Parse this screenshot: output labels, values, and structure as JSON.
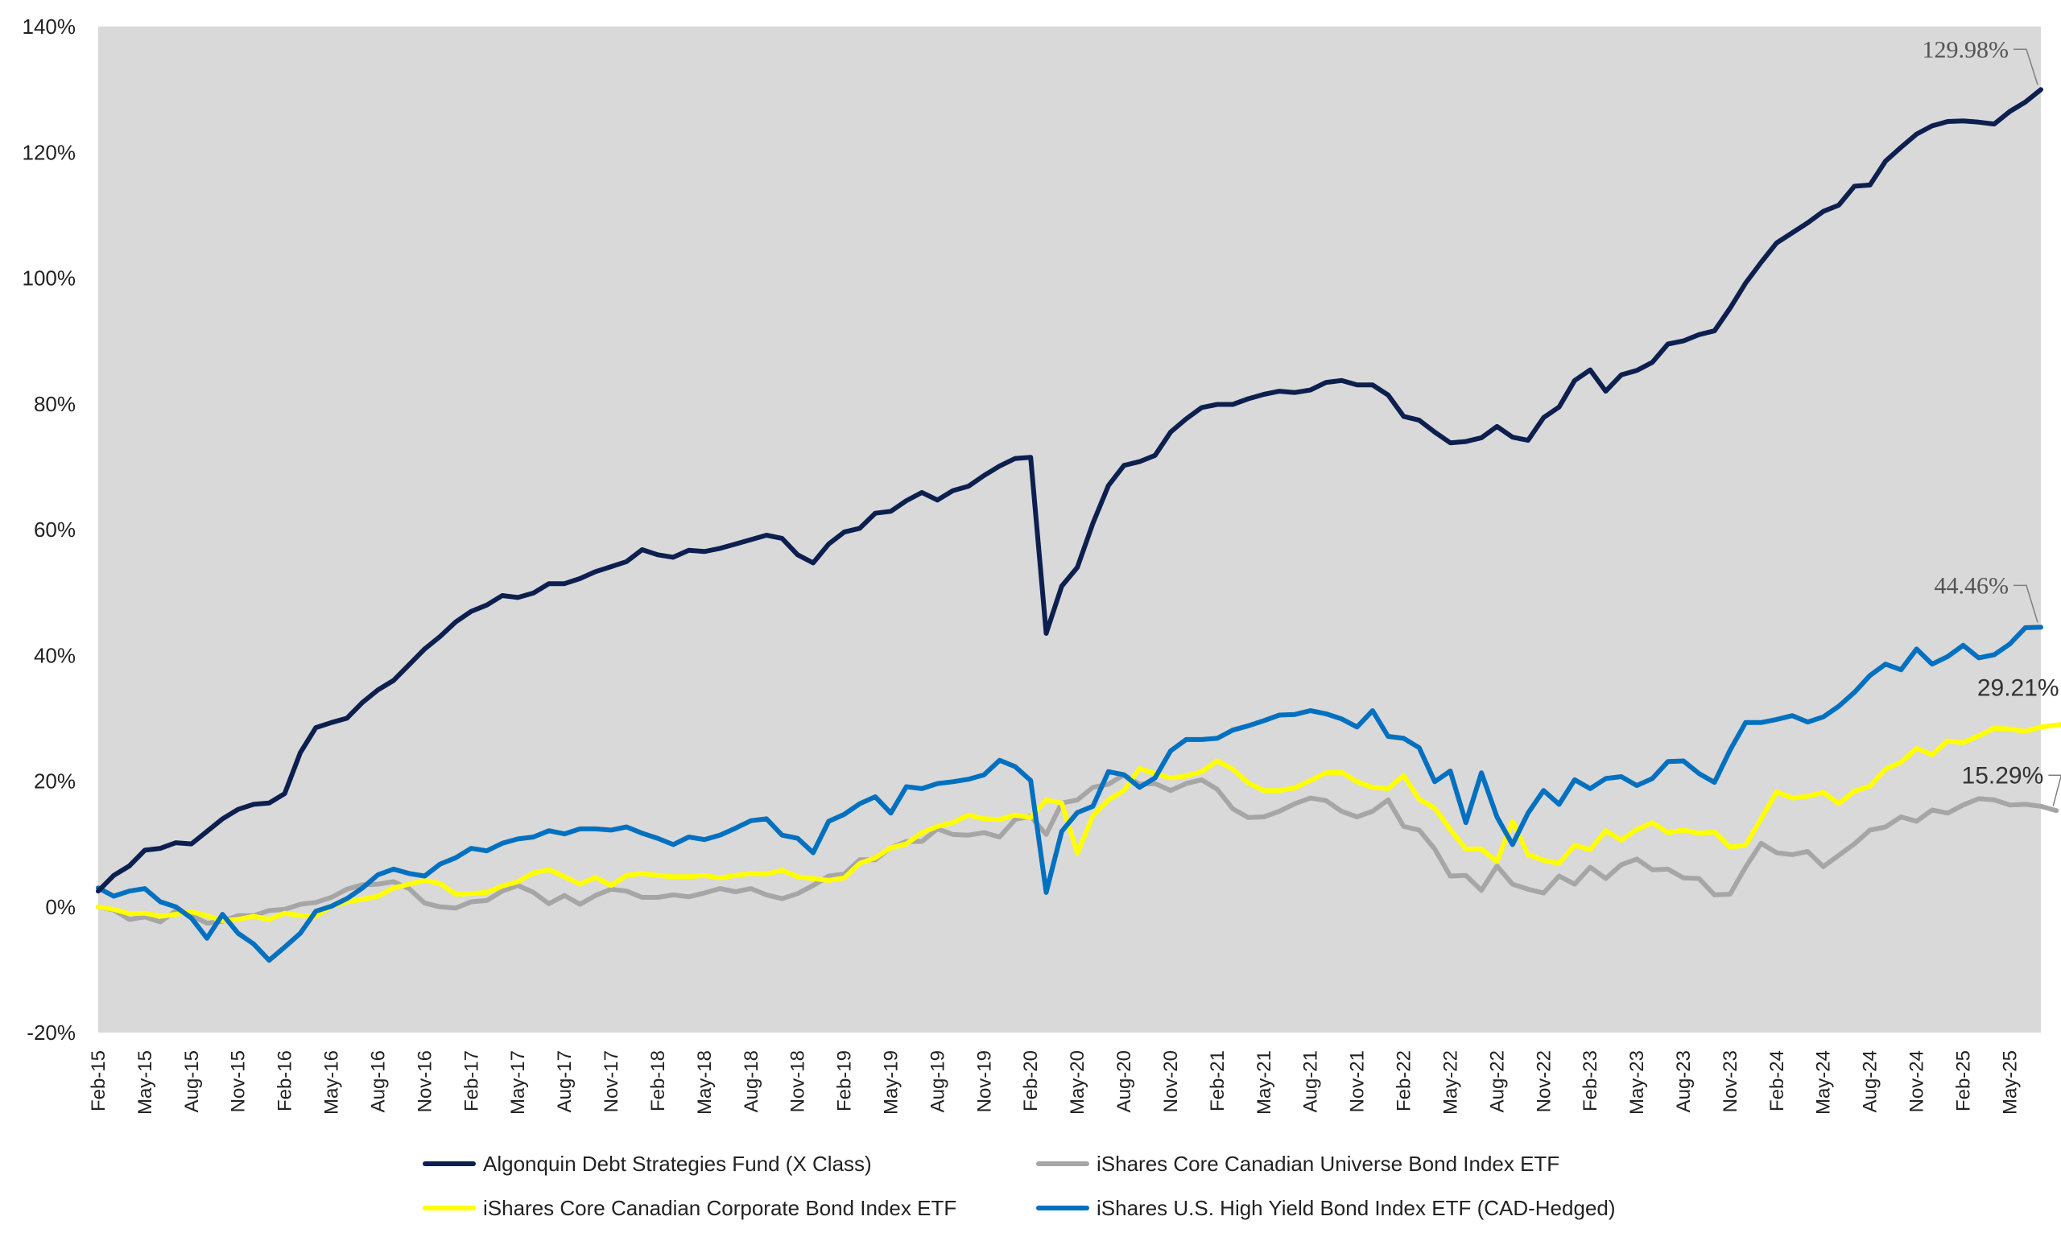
{
  "chart_data": {
    "type": "line",
    "title": "",
    "xlabel": "",
    "ylabel": "",
    "ylim": [
      -20,
      140
    ],
    "y_ticks": [
      "-20%",
      "0%",
      "20%",
      "40%",
      "60%",
      "80%",
      "100%",
      "120%",
      "140%"
    ],
    "y_tick_values": [
      -20,
      0,
      20,
      40,
      60,
      80,
      100,
      120,
      140
    ],
    "x_tick_labels": [
      "Feb-15",
      "May-15",
      "Aug-15",
      "Nov-15",
      "Feb-16",
      "May-16",
      "Aug-16",
      "Nov-16",
      "Feb-17",
      "May-17",
      "Aug-17",
      "Nov-17",
      "Feb-18",
      "May-18",
      "Aug-18",
      "Nov-18",
      "Feb-19",
      "May-19",
      "Aug-19",
      "Nov-19",
      "Feb-20",
      "May-20",
      "Aug-20",
      "Nov-20",
      "Feb-21",
      "May-21",
      "Aug-21",
      "Nov-21",
      "Feb-22",
      "May-22",
      "Aug-22",
      "Nov-22",
      "Feb-23",
      "May-23",
      "Aug-23",
      "Nov-23",
      "Feb-24",
      "May-24",
      "Aug-24",
      "Nov-24",
      "Feb-25",
      "May-25"
    ],
    "x_start_month": "Feb-15",
    "plot_background": "#d9d9d9",
    "grid": false,
    "legend_position": "bottom",
    "series": [
      {
        "name": "Algonquin Debt Strategies Fund (X Class)",
        "color": "#0c1f4f",
        "values": [
          2.5,
          5,
          6.5,
          9,
          9.3,
          10.2,
          10,
          12,
          14,
          15.5,
          16.3,
          16.5,
          18,
          24.5,
          28.5,
          29.3,
          30,
          32.5,
          34.5,
          36,
          38.5,
          41,
          43,
          45.3,
          47,
          48,
          49.5,
          49.2,
          49.9,
          51.4,
          51.4,
          52.2,
          53.3,
          54.1,
          54.9,
          56.8,
          56.0,
          55.6,
          56.7,
          56.5,
          57.0,
          57.7,
          58.4,
          59.1,
          58.6,
          56.0,
          54.7,
          57.7,
          59.6,
          60.2,
          62.6,
          62.9,
          64.6,
          65.9,
          64.7,
          66.2,
          66.9,
          68.6,
          70.1,
          71.3,
          71.5,
          43.5,
          51,
          54,
          61,
          67,
          70.2,
          70.8,
          71.8,
          75.5,
          77.6,
          79.4,
          79.9,
          79.9,
          80.8,
          81.5,
          82.0,
          81.8,
          82.2,
          83.4,
          83.7,
          83.0,
          83.0,
          81.4,
          78.0,
          77.4,
          75.5,
          73.8,
          74.0,
          74.6,
          76.4,
          74.7,
          74.2,
          77.8,
          79.5,
          83.7,
          85.4,
          82.0,
          84.6,
          85.3,
          86.6,
          89.5,
          90.0,
          91.0,
          91.6,
          95.2,
          99.2,
          102.5,
          105.6,
          107.2,
          108.8,
          110.6,
          111.6,
          114.6,
          114.8,
          118.6,
          120.8,
          122.9,
          124.2,
          124.9,
          125.0,
          124.8,
          124.5,
          126.5,
          128.0,
          129.98
        ]
      },
      {
        "name": "iShares Core Canadian Universe Bond Index ETF",
        "color": "#a6a6a6",
        "values": [
          0,
          -0.5,
          -2,
          -1.6,
          -2.4,
          -0.6,
          -1.4,
          -2.6,
          -2.3,
          -1.4,
          -1.4,
          -0.6,
          -0.4,
          0.4,
          0.7,
          1.5,
          2.8,
          3.5,
          3.6,
          4.0,
          2.9,
          0.6,
          0.0,
          -0.2,
          0.8,
          1.0,
          2.5,
          3.4,
          2.3,
          0.5,
          1.8,
          0.4,
          1.8,
          2.8,
          2.5,
          1.5,
          1.5,
          1.9,
          1.6,
          2.2,
          2.9,
          2.4,
          2.9,
          1.9,
          1.3,
          2.1,
          3.4,
          4.9,
          5.2,
          7.5,
          7.5,
          9.4,
          10.4,
          10.4,
          12.4,
          11.5,
          11.4,
          11.8,
          11.1,
          13.9,
          14.4,
          11.5,
          16.5,
          17,
          19,
          19.5,
          21,
          19.5,
          19.6,
          18.5,
          19.6,
          20.2,
          18.7,
          15.6,
          14.2,
          14.3,
          15.2,
          16.4,
          17.3,
          16.9,
          15.2,
          14.3,
          15.2,
          17.0,
          12.8,
          12.2,
          9.2,
          4.9,
          5.0,
          2.6,
          6.5,
          3.6,
          2.8,
          2.2,
          4.9,
          3.6,
          6.3,
          4.5,
          6.7,
          7.6,
          5.9,
          6.0,
          4.6,
          4.5,
          1.9,
          2.0,
          6.3,
          10.1,
          8.6,
          8.3,
          8.8,
          6.4,
          8.2,
          10.0,
          12.2,
          12.7,
          14.3,
          13.6,
          15.4,
          14.9,
          16.2,
          17.2,
          17.0,
          16.2,
          16.3,
          16.0,
          15.29
        ]
      },
      {
        "name": "iShares Core Canadian Corporate Bond Index ETF",
        "color": "#ffff00",
        "values": [
          0,
          -0.4,
          -1.1,
          -1.0,
          -1.5,
          -1.2,
          -0.8,
          -1.4,
          -2.2,
          -2.0,
          -1.5,
          -2.0,
          -1.0,
          -1.4,
          -1.5,
          0.1,
          0.8,
          1.2,
          1.7,
          3.0,
          3.6,
          4.2,
          3.7,
          2.0,
          2.1,
          2.3,
          3.3,
          4.0,
          5.4,
          5.9,
          4.8,
          3.6,
          4.7,
          3.4,
          5.0,
          5.3,
          5.0,
          4.8,
          4.8,
          5.0,
          4.6,
          5.0,
          5.3,
          5.2,
          5.8,
          4.8,
          4.5,
          4.2,
          4.6,
          6.9,
          7.8,
          9.4,
          10.0,
          11.8,
          12.8,
          13.4,
          14.6,
          14.0,
          13.9,
          14.6,
          14.2,
          17.0,
          16.5,
          8.5,
          14.5,
          17,
          18.5,
          22,
          21.2,
          20.5,
          20.8,
          21.5,
          23.2,
          21.9,
          19.7,
          18.5,
          18.5,
          18.9,
          20.1,
          21.3,
          21.4,
          19.9,
          19.0,
          18.8,
          20.9,
          17.1,
          15.7,
          12.3,
          9.2,
          9.2,
          7.2,
          13.6,
          8.3,
          7.4,
          6.9,
          9.8,
          9.1,
          12.1,
          10.6,
          12.3,
          13.4,
          11.8,
          12.2,
          11.7,
          11.9,
          9.5,
          9.8,
          14.0,
          18.3,
          17.3,
          17.6,
          18.2,
          16.4,
          18.4,
          19.2,
          21.9,
          23.0,
          25.2,
          24.2,
          26.4,
          26.1,
          27.2,
          28.4,
          28.3,
          27.9,
          28.6,
          28.9,
          29.21
        ]
      },
      {
        "name": "iShares U.S. High Yield Bond Index ETF (CAD-Hedged)",
        "color": "#0070c0",
        "values": [
          3,
          1.7,
          2.5,
          2.9,
          0.8,
          0.0,
          -1.8,
          -5,
          -1.2,
          -4.2,
          -5.9,
          -8.5,
          -6.4,
          -4.2,
          -0.7,
          0.1,
          1.3,
          3.0,
          5.1,
          6.0,
          5.3,
          4.9,
          6.8,
          7.8,
          9.3,
          8.9,
          10.1,
          10.8,
          11.1,
          12.1,
          11.6,
          12.4,
          12.4,
          12.2,
          12.7,
          11.7,
          10.9,
          9.9,
          11.1,
          10.7,
          11.4,
          12.5,
          13.7,
          14.0,
          11.4,
          10.9,
          8.6,
          13.6,
          14.7,
          16.4,
          17.5,
          14.9,
          19.1,
          18.8,
          19.6,
          19.9,
          20.3,
          21.0,
          23.3,
          22.3,
          20.1,
          2.3,
          12.0,
          15.0,
          16.0,
          21.5,
          21.0,
          19.0,
          20.5,
          24.8,
          26.6,
          26.6,
          26.8,
          28.1,
          28.8,
          29.6,
          30.5,
          30.6,
          31.2,
          30.7,
          29.9,
          28.6,
          31.2,
          27.1,
          26.8,
          25.3,
          19.9,
          21.6,
          13.4,
          21.3,
          14.3,
          9.9,
          14.9,
          18.5,
          16.3,
          20.2,
          18.8,
          20.4,
          20.7,
          19.3,
          20.4,
          23.1,
          23.2,
          21.2,
          19.8,
          24.9,
          29.3,
          29.3,
          29.8,
          30.4,
          29.4,
          30.2,
          31.9,
          34.1,
          36.8,
          38.6,
          37.7,
          41.0,
          38.6,
          39.8,
          41.6,
          39.6,
          40.1,
          41.8,
          44.4,
          44.46
        ]
      }
    ],
    "annotations": [
      {
        "text": "129.98%",
        "series": 0,
        "style": "serif"
      },
      {
        "text": "44.46%",
        "series": 3,
        "style": "serif"
      },
      {
        "text": "29.21%",
        "series": 2,
        "style": "sans"
      },
      {
        "text": "15.29%",
        "series": 1,
        "style": "sans"
      }
    ]
  }
}
